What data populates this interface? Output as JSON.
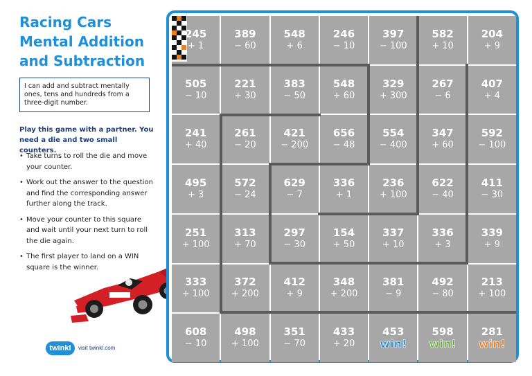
{
  "title": "Racing Cars Mental Addition and Subtraction",
  "objective": "I can add and subtract mentally ones, tens and hundreds from a three-digit number.",
  "intro": "Play this game with a partner. You need a die and two small counters.",
  "rules": [
    "Take turns to roll the die and move your counter.",
    "Work out the answer to the question and find the corresponding answer further along the track.",
    "Move your counter to this square and wait until your next turn to roll the die again.",
    "The first player to land on a WIN square is the winner."
  ],
  "logo": {
    "badge": "twinkl",
    "text": "visit twinkl.com"
  },
  "colors": {
    "accent": "#1f8fd8",
    "navy": "#1b3f78",
    "tile": "#a7a7a8",
    "win_blue": "#1f8fd8",
    "win_green": "#63b32e",
    "win_orange": "#f07e1b"
  },
  "win_label": "win!",
  "board": [
    [
      [
        "245",
        "+ 1"
      ],
      [
        "389",
        "− 60"
      ],
      [
        "548",
        "+ 6"
      ],
      [
        "246",
        "− 10"
      ],
      [
        "397",
        "− 100"
      ],
      [
        "582",
        "+ 10"
      ],
      [
        "204",
        "+ 9"
      ]
    ],
    [
      [
        "505",
        "− 10"
      ],
      [
        "221",
        "+ 30"
      ],
      [
        "383",
        "− 50"
      ],
      [
        "548",
        "+ 60"
      ],
      [
        "329",
        "+ 300"
      ],
      [
        "267",
        "− 6"
      ],
      [
        "407",
        "+ 4"
      ]
    ],
    [
      [
        "241",
        "+ 40"
      ],
      [
        "261",
        "− 20"
      ],
      [
        "421",
        "− 200"
      ],
      [
        "656",
        "− 48"
      ],
      [
        "554",
        "− 400"
      ],
      [
        "347",
        "+ 60"
      ],
      [
        "592",
        "− 100"
      ]
    ],
    [
      [
        "495",
        "+ 3"
      ],
      [
        "572",
        "− 24"
      ],
      [
        "629",
        "− 7"
      ],
      [
        "336",
        "+ 1"
      ],
      [
        "236",
        "+ 100"
      ],
      [
        "622",
        "− 40"
      ],
      [
        "411",
        "− 30"
      ]
    ],
    [
      [
        "251",
        "+ 100"
      ],
      [
        "313",
        "+ 70"
      ],
      [
        "297",
        "− 30"
      ],
      [
        "154",
        "+ 50"
      ],
      [
        "337",
        "+ 10"
      ],
      [
        "336",
        "+ 3"
      ],
      [
        "339",
        "+ 9"
      ]
    ],
    [
      [
        "333",
        "+ 100"
      ],
      [
        "372",
        "+ 200"
      ],
      [
        "412",
        "+ 9"
      ],
      [
        "348",
        "+ 200"
      ],
      [
        "381",
        "− 9"
      ],
      [
        "492",
        "− 80"
      ],
      [
        "213",
        "+ 100"
      ]
    ],
    [
      [
        "608",
        "− 10"
      ],
      [
        "498",
        "+ 100"
      ],
      [
        "351",
        "− 70"
      ],
      [
        "433",
        "+ 20"
      ],
      [
        "453",
        ""
      ],
      [
        "598",
        ""
      ],
      [
        "281",
        ""
      ]
    ]
  ]
}
